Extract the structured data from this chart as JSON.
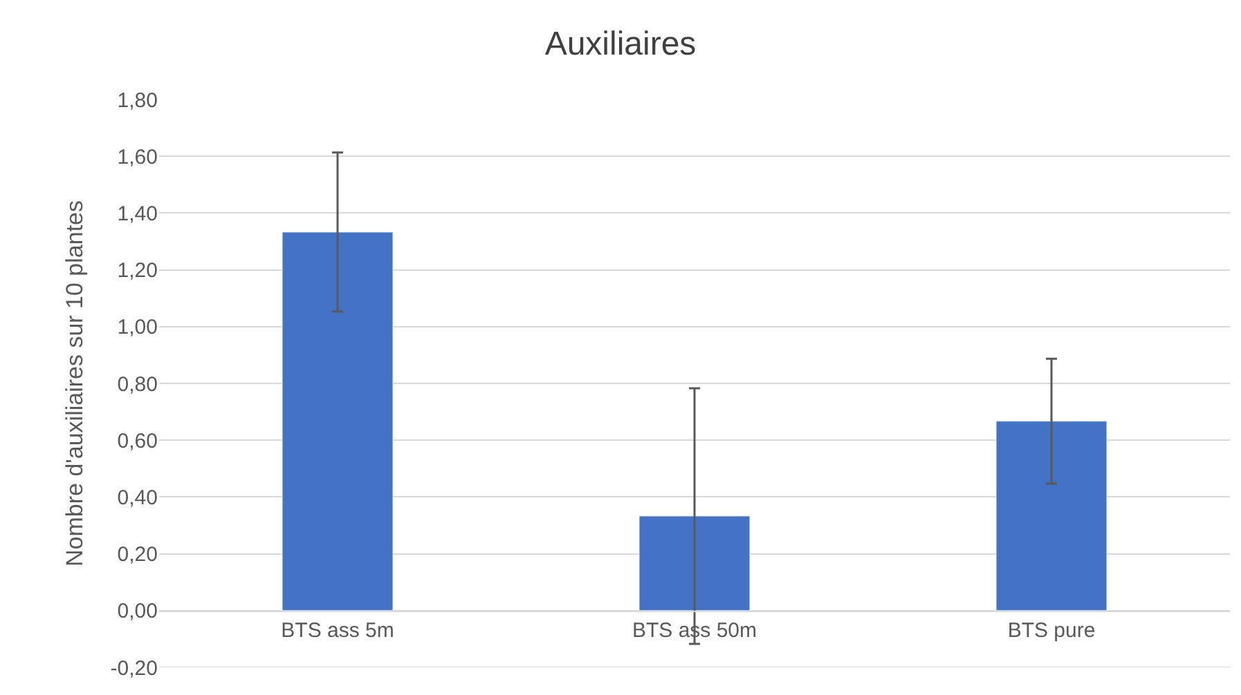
{
  "chart_data": {
    "type": "bar",
    "title": "Auxiliaires",
    "ylabel": "Nombre d'auxiliaires sur 10 plantes",
    "categories": [
      "BTS ass 5m",
      "BTS ass 50m",
      "BTS pure"
    ],
    "values": [
      1.333,
      0.333,
      0.667
    ],
    "errors": [
      0.28,
      0.45,
      0.22
    ],
    "color": "#4472c4",
    "ylim": [
      -0.2,
      1.8
    ],
    "yticks": [
      {
        "value": -0.2,
        "label": "-0,20"
      },
      {
        "value": 0,
        "label": "0,00"
      },
      {
        "value": 0.2,
        "label": "0,20"
      },
      {
        "value": 0.4,
        "label": "0,40"
      },
      {
        "value": 0.6,
        "label": "0,60"
      },
      {
        "value": 0.8,
        "label": "0,80"
      },
      {
        "value": 1.0,
        "label": "1,00"
      },
      {
        "value": 1.2,
        "label": "1,20"
      },
      {
        "value": 1.4,
        "label": "1,40"
      },
      {
        "value": 1.6,
        "label": "1,60"
      },
      {
        "value": 1.8,
        "label": "1,80"
      }
    ],
    "grid": "y"
  }
}
